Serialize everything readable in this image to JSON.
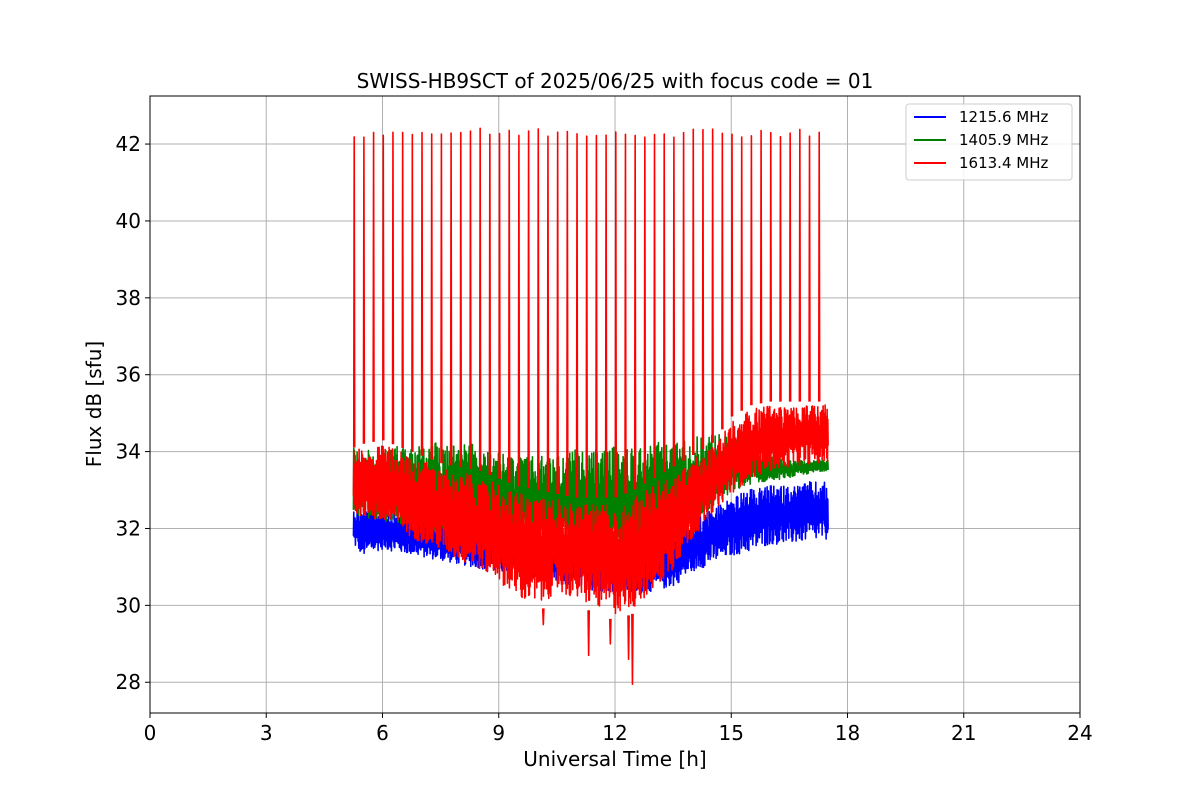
{
  "chart_data": {
    "type": "line",
    "title": "SWISS-HB9SCT of 2025/06/25 with focus code = 01",
    "xlabel": "Universal Time [h]",
    "ylabel": "Flux dB [sfu]",
    "xlim": [
      0,
      24
    ],
    "ylim": [
      27.2,
      43.25
    ],
    "xticks": [
      0,
      3,
      6,
      9,
      12,
      15,
      18,
      21,
      24
    ],
    "yticks": [
      28,
      30,
      32,
      34,
      36,
      38,
      40,
      42
    ],
    "grid": true,
    "legend_position": "top-right",
    "series": [
      {
        "name": "1215.6 MHz",
        "color": "#0000ff",
        "x": [
          5.25,
          5.5,
          6.0,
          6.5,
          7.0,
          7.5,
          8.0,
          8.5,
          9.0,
          9.5,
          10.0,
          10.5,
          11.0,
          11.5,
          12.0,
          12.5,
          13.0,
          13.5,
          14.0,
          14.5,
          15.0,
          15.5,
          16.0,
          16.5,
          17.0,
          17.5
        ],
        "low": [
          31.5,
          31.2,
          31.4,
          31.3,
          31.2,
          31.1,
          31.0,
          30.9,
          30.8,
          30.7,
          30.6,
          30.5,
          30.4,
          30.3,
          30.3,
          30.2,
          30.3,
          30.4,
          30.8,
          31.0,
          31.2,
          31.3,
          31.5,
          31.5,
          31.6,
          31.6
        ],
        "high": [
          32.6,
          32.6,
          32.6,
          32.5,
          32.4,
          32.3,
          32.2,
          32.1,
          32.0,
          31.9,
          31.8,
          31.8,
          31.7,
          31.7,
          31.6,
          31.6,
          31.8,
          32.0,
          32.3,
          32.6,
          32.9,
          33.1,
          33.2,
          33.2,
          33.3,
          33.3
        ]
      },
      {
        "name": "1405.9 MHz",
        "color": "#008000",
        "x": [
          5.25,
          5.5,
          6.0,
          6.5,
          7.0,
          7.5,
          8.0,
          8.5,
          9.0,
          9.5,
          10.0,
          10.5,
          11.0,
          11.5,
          12.0,
          12.5,
          13.0,
          13.5,
          14.0,
          14.5,
          15.0,
          15.5,
          16.0,
          16.5,
          17.0,
          17.5
        ],
        "low": [
          32.2,
          32.2,
          32.1,
          32.0,
          31.9,
          31.8,
          31.7,
          31.6,
          31.5,
          31.4,
          31.3,
          31.2,
          31.1,
          31.1,
          31.0,
          31.0,
          31.2,
          31.6,
          32.0,
          32.4,
          32.8,
          33.1,
          33.2,
          33.3,
          33.4,
          33.5
        ],
        "high": [
          34.2,
          34.1,
          34.2,
          34.3,
          34.3,
          34.4,
          34.4,
          34.3,
          34.1,
          34.0,
          34.0,
          34.1,
          34.2,
          34.2,
          34.3,
          34.3,
          34.4,
          34.4,
          34.5,
          34.6,
          34.5,
          34.2,
          33.9,
          33.8,
          33.8,
          33.8
        ]
      },
      {
        "name": "1613.4 MHz",
        "color": "#ff0000",
        "x": [
          5.25,
          5.5,
          6.0,
          6.5,
          7.0,
          7.5,
          8.0,
          8.5,
          9.0,
          9.5,
          10.0,
          10.5,
          11.0,
          11.5,
          12.0,
          12.5,
          13.0,
          13.5,
          14.0,
          14.5,
          15.0,
          15.5,
          16.0,
          16.5,
          17.0,
          17.5
        ],
        "low": [
          32.3,
          32.2,
          32.0,
          31.8,
          31.5,
          31.3,
          31.0,
          30.8,
          30.5,
          30.0,
          29.8,
          30.2,
          30.0,
          29.8,
          29.6,
          29.8,
          30.2,
          30.8,
          31.6,
          32.3,
          32.8,
          33.2,
          33.4,
          33.5,
          33.6,
          33.6
        ],
        "high": [
          34.1,
          34.2,
          34.3,
          34.1,
          33.9,
          33.7,
          33.6,
          33.5,
          33.3,
          33.1,
          33.0,
          32.9,
          32.8,
          32.8,
          32.8,
          33.0,
          33.3,
          33.6,
          33.9,
          34.2,
          34.9,
          35.2,
          35.3,
          35.3,
          35.3,
          35.3
        ]
      }
    ],
    "calibration_spikes": {
      "series": "1613.4 MHz",
      "peak": 42.3,
      "x": [
        5.27,
        5.52,
        5.77,
        6.02,
        6.27,
        6.52,
        6.77,
        7.02,
        7.27,
        7.52,
        7.77,
        8.02,
        8.27,
        8.52,
        8.77,
        9.02,
        9.27,
        9.52,
        9.77,
        10.02,
        10.27,
        10.52,
        10.77,
        11.02,
        11.27,
        11.52,
        11.77,
        12.02,
        12.27,
        12.52,
        12.77,
        13.02,
        13.27,
        13.52,
        13.77,
        14.02,
        14.27,
        14.52,
        14.77,
        15.02,
        15.27,
        15.52,
        15.77,
        16.02,
        16.27,
        16.52,
        16.77,
        17.02,
        17.27
      ]
    },
    "dips": [
      {
        "series": "1613.4 MHz",
        "x": 11.32,
        "y": 28.7
      },
      {
        "series": "1613.4 MHz",
        "x": 11.88,
        "y": 29.0
      },
      {
        "series": "1613.4 MHz",
        "x": 12.35,
        "y": 28.6
      },
      {
        "series": "1613.4 MHz",
        "x": 12.45,
        "y": 27.95
      },
      {
        "series": "1613.4 MHz",
        "x": 10.15,
        "y": 29.5
      }
    ]
  }
}
